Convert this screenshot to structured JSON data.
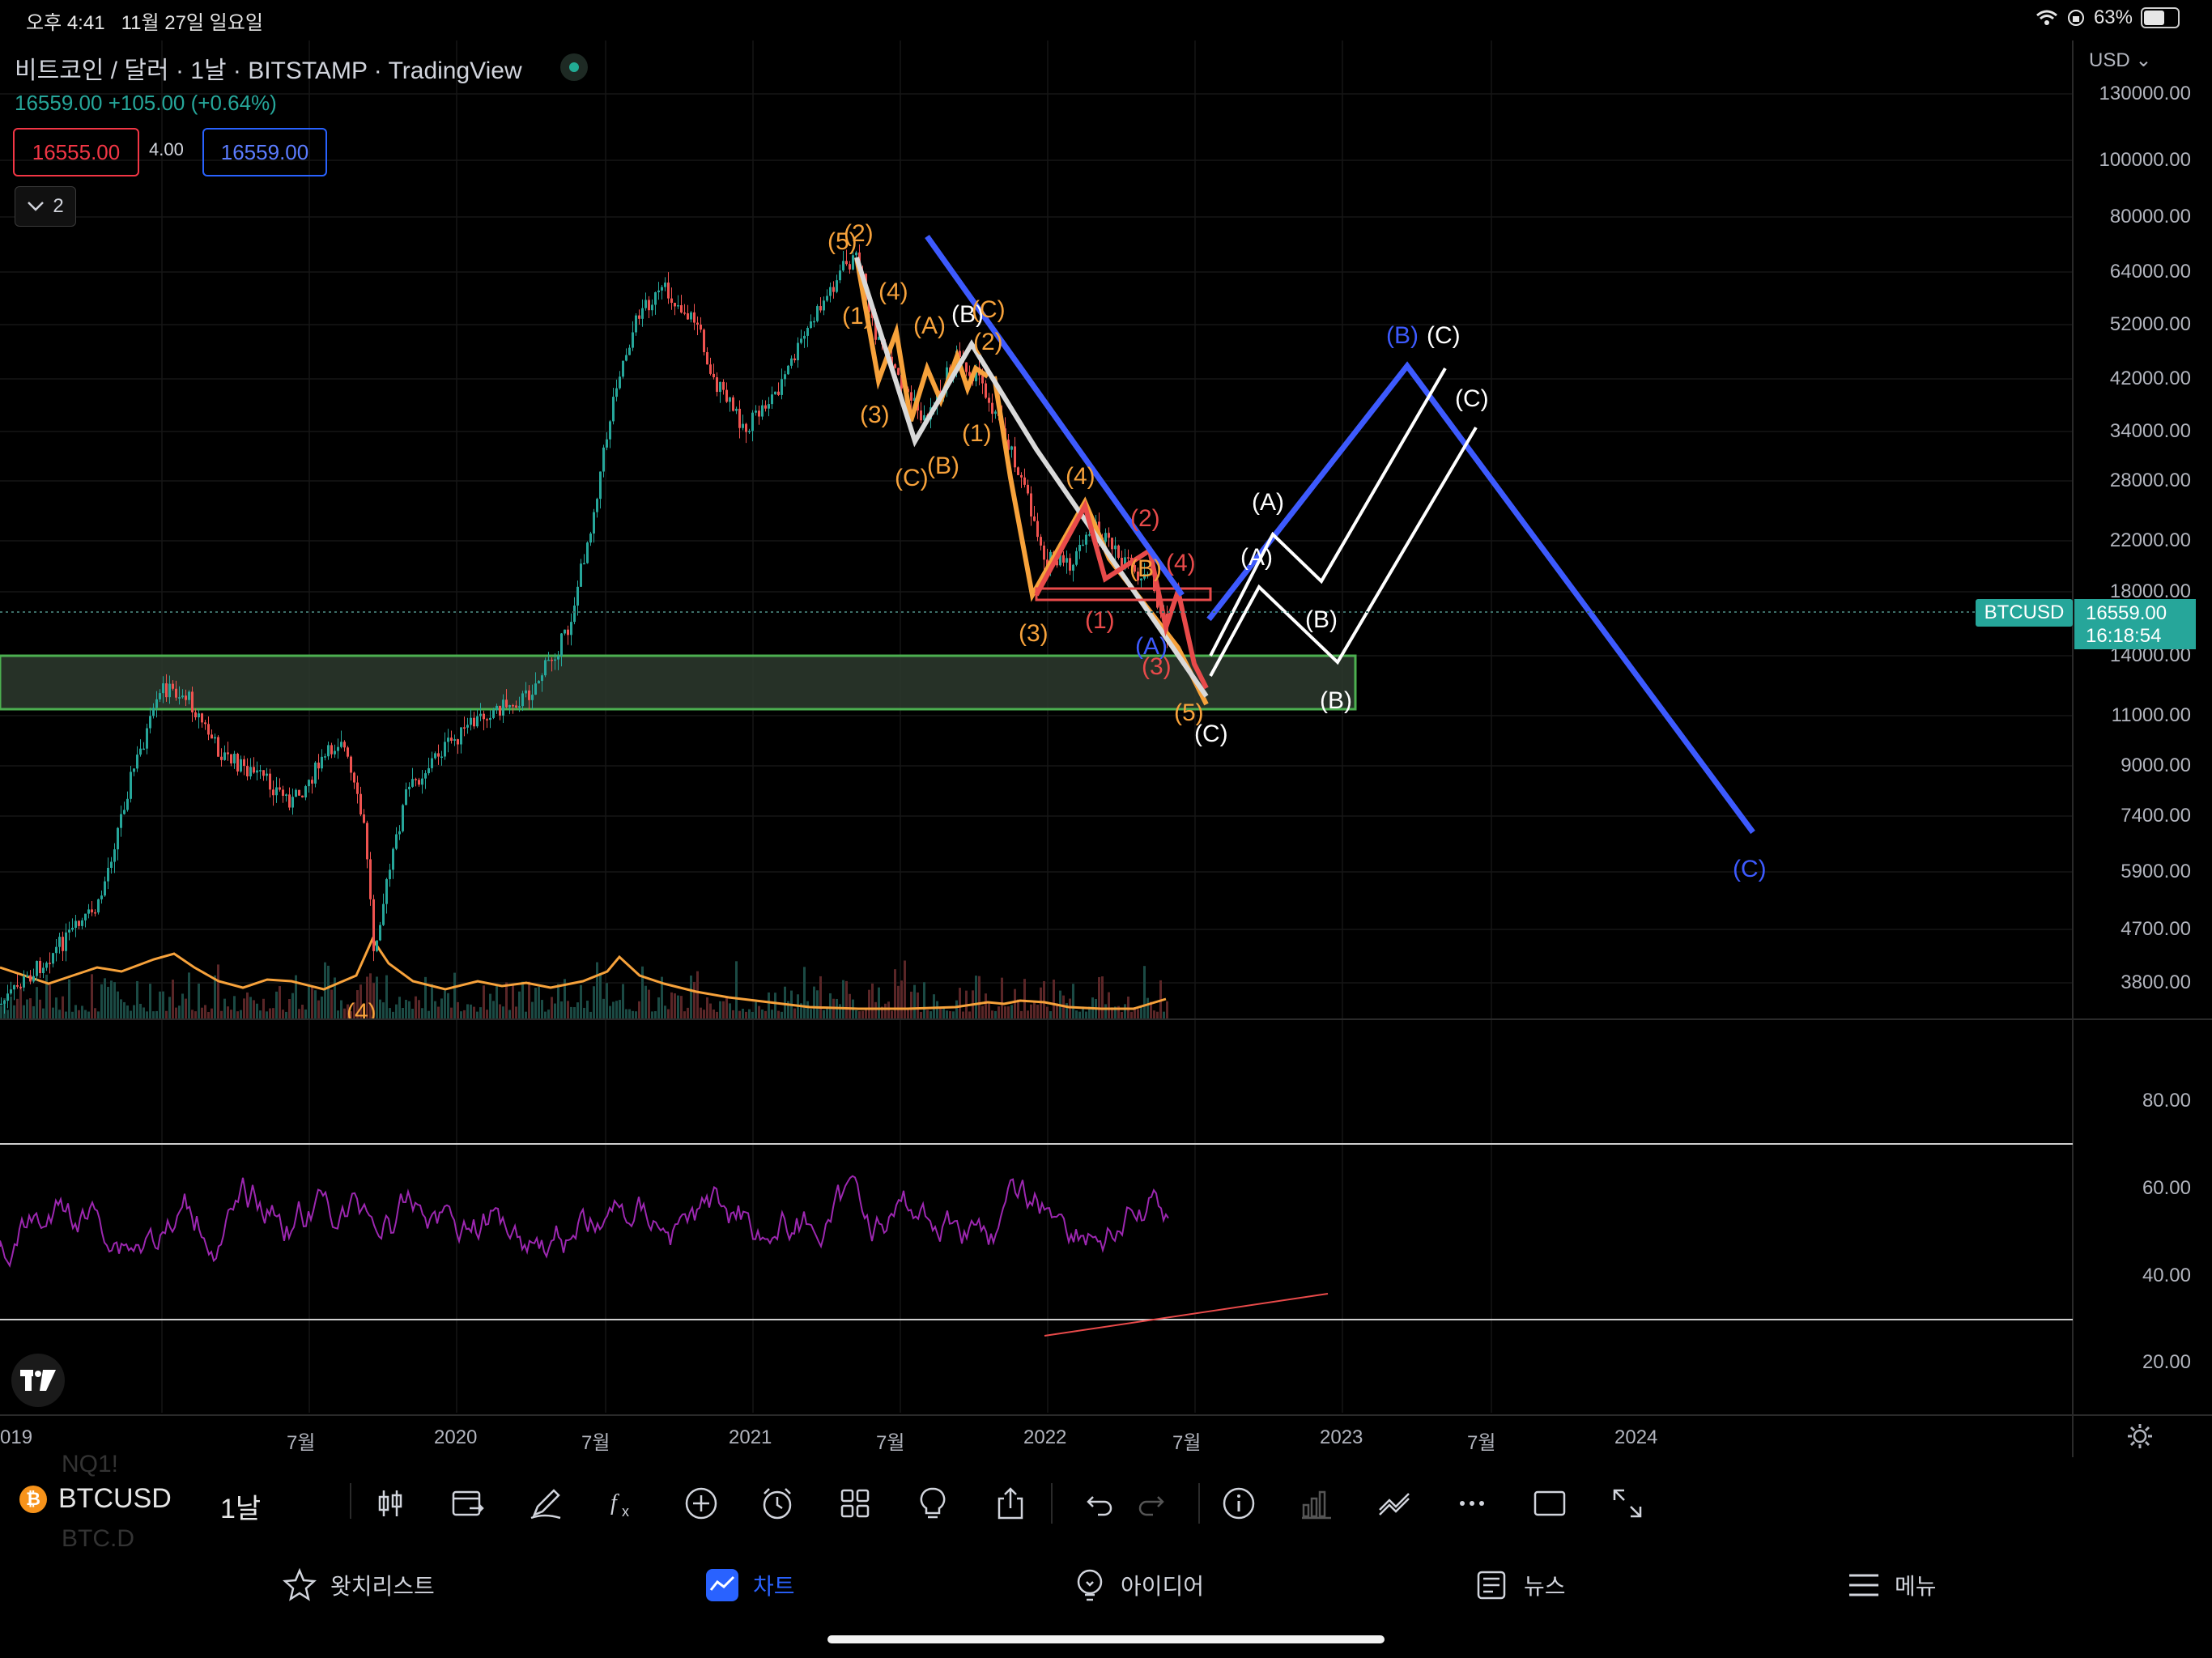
{
  "status_bar": {
    "time": "오후 4:41",
    "date": "11월 27일 일요일",
    "battery": "63%",
    "battery_level": 0.63
  },
  "chart_header": {
    "title": "비트코인 / 달러 · 1날 · BITSTAMP · TradingView",
    "last": "16559.00",
    "change": "+105.00 (+0.64%)",
    "bid": "16555.00",
    "spread": "4.00",
    "ask": "16559.00",
    "indicators_count": "2"
  },
  "price_axis": {
    "currency": "USD",
    "labels": [
      "130000.00",
      "100000.00",
      "80000.00",
      "64000.00",
      "52000.00",
      "42000.00",
      "34000.00",
      "28000.00",
      "22000.00",
      "18000.00",
      "14000.00",
      "11000.00",
      "9000.00",
      "7400.00",
      "5900.00",
      "4700.00",
      "3800.00"
    ],
    "symbol_tag": "BTCUSD",
    "price_tag": "16559.00",
    "countdown": "16:18:54"
  },
  "rsi_axis": {
    "labels": [
      "80.00",
      "60.00",
      "40.00",
      "20.00"
    ]
  },
  "time_axis": {
    "labels": [
      "019",
      "7월",
      "2020",
      "7월",
      "2021",
      "7월",
      "2022",
      "7월",
      "2023",
      "7월",
      "2024"
    ]
  },
  "wave_labels": {
    "orange": [
      "(5)",
      "(2)",
      "(4)",
      "(1)",
      "(A)",
      "(3)",
      "(B)",
      "(C)",
      "(1)",
      "(4)",
      "(3)",
      "(B)",
      "(5)",
      "(4)"
    ],
    "white": [
      "(B)",
      "(C)",
      "(2)",
      "(A)",
      "(A)",
      "(B)",
      "(B)",
      "(C)",
      "(C)",
      "(C)"
    ],
    "red": [
      "(2)",
      "(1)",
      "(4)",
      "(3)"
    ],
    "blue": [
      "(A)",
      "(B)",
      "(C)"
    ]
  },
  "toolbar": {
    "symbol": "BTCUSD",
    "interval": "1날",
    "ghost_1": "NQ1!",
    "ghost_2": "BTC.D",
    "tools": [
      "candles-icon",
      "compare-icon",
      "draw-icon",
      "indicators-icon",
      "add-icon",
      "alert-icon",
      "layouts-icon",
      "ideas-icon",
      "share-icon",
      "undo-icon",
      "redo-icon",
      "info-icon",
      "volume-icon",
      "signals-icon",
      "more-icon",
      "fullscreen-box-icon",
      "expand-icon"
    ]
  },
  "nav": {
    "watchlist": "왓치리스트",
    "chart": "차트",
    "ideas": "아이디어",
    "news": "뉴스",
    "menu": "메뉴"
  },
  "colors": {
    "background": "#000000",
    "up": "#26a69a",
    "down": "#ef5350",
    "elliott_orange": "#f7a23b",
    "elliott_blue": "#3d5afe",
    "elliott_red": "#e84a4a",
    "rsi": "#9c27b0",
    "support_zone": "#4caf50",
    "nav_active": "#2962ff"
  }
}
